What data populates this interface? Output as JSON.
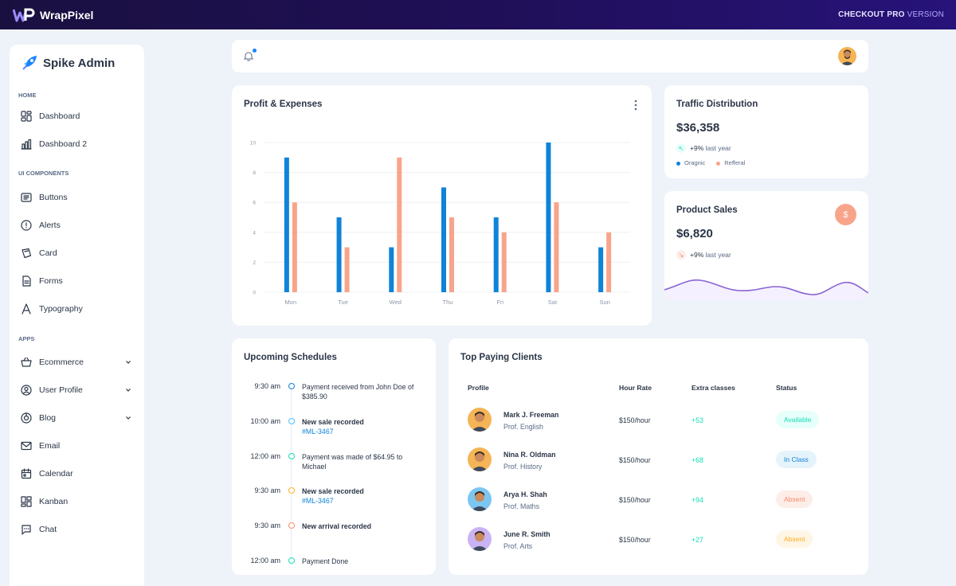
{
  "topbar": {
    "brand": "WrapPixel",
    "checkout_main": "CHECKOUT PRO",
    "checkout_suffix": " VERSION"
  },
  "sidebar": {
    "title": "Spike Admin",
    "sections": [
      {
        "label": "HOME",
        "items": [
          {
            "label": "Dashboard",
            "icon": "dashboard-icon"
          },
          {
            "label": "Dashboard 2",
            "icon": "bar-chart-icon"
          }
        ]
      },
      {
        "label": "UI COMPONENTS",
        "items": [
          {
            "label": "Buttons",
            "icon": "buttons-icon"
          },
          {
            "label": "Alerts",
            "icon": "alert-icon"
          },
          {
            "label": "Card",
            "icon": "card-icon"
          },
          {
            "label": "Forms",
            "icon": "form-icon"
          },
          {
            "label": "Typography",
            "icon": "typography-icon"
          }
        ]
      },
      {
        "label": "APPS",
        "items": [
          {
            "label": "Ecommerce",
            "icon": "basket-icon",
            "expandable": true
          },
          {
            "label": "User Profile",
            "icon": "user-icon",
            "expandable": true
          },
          {
            "label": "Blog",
            "icon": "blog-icon",
            "expandable": true
          },
          {
            "label": "Email",
            "icon": "mail-icon"
          },
          {
            "label": "Calendar",
            "icon": "calendar-icon"
          },
          {
            "label": "Kanban",
            "icon": "kanban-icon"
          },
          {
            "label": "Chat",
            "icon": "chat-icon"
          }
        ]
      }
    ]
  },
  "header": {
    "notification_icon": "bell-icon"
  },
  "profit_card": {
    "title": "Profit & Expenses",
    "chart_data": {
      "type": "bar",
      "categories": [
        "Mon",
        "Tue",
        "Wed",
        "Thu",
        "Fri",
        "Sat",
        "Sun"
      ],
      "series": [
        {
          "values": [
            9,
            5,
            3,
            7,
            5,
            10,
            3
          ],
          "color": "#0f83d8"
        },
        {
          "values": [
            6,
            3,
            9,
            5,
            4,
            6,
            4
          ],
          "color": "#f8a48b"
        }
      ],
      "ylim": [
        0,
        10
      ],
      "yticks": [
        "0",
        "2",
        "4",
        "6",
        "8",
        "10"
      ],
      "grid": true
    }
  },
  "traffic_card": {
    "title": "Traffic Distribution",
    "amount": "$36,358",
    "trend": "+9%",
    "trend_suffix": " last year",
    "legend": [
      {
        "label": "Oragnic",
        "color": "#0f83d8"
      },
      {
        "label": "Refferal",
        "color": "#f8a48b"
      }
    ]
  },
  "sales_card": {
    "title": "Product Sales",
    "amount": "$6,820",
    "trend": "+9%",
    "trend_suffix": " last year",
    "badge_symbol": "$"
  },
  "schedules_card": {
    "title": "Upcoming Schedules",
    "items": [
      {
        "time": "9:30 am",
        "text": "Payment received from John Doe of $385.90",
        "bold": false,
        "link": "",
        "color": "#0f83d8"
      },
      {
        "time": "10:00 am",
        "text": "New sale recorded",
        "bold": true,
        "link": "#ML-3467",
        "color": "#49beff"
      },
      {
        "time": "12:00 am",
        "text": "Payment was made of $64.95 to Michael",
        "bold": false,
        "link": "",
        "color": "#13deb9"
      },
      {
        "time": "9:30 am",
        "text": "New sale recorded",
        "bold": true,
        "link": "#ML-3467",
        "color": "#ffae1f"
      },
      {
        "time": "9:30 am",
        "text": "New arrival recorded",
        "bold": true,
        "link": "",
        "color": "#fa896b"
      },
      {
        "time": "12:00 am",
        "text": "Payment Done",
        "bold": false,
        "link": "",
        "color": "#13deb9"
      }
    ]
  },
  "clients_card": {
    "title": "Top Paying Clients",
    "headers": {
      "profile": "Profile",
      "rate": "Hour Rate",
      "extra": "Extra classes",
      "status": "Status"
    },
    "rows": [
      {
        "name": "Mark J. Freeman",
        "subject": "Prof. English",
        "rate": "$150/hour",
        "extra": "+53",
        "status": "Available",
        "status_color": "#13deb9",
        "status_bg": "#e6fffa",
        "avatar_bg": "#f5b455"
      },
      {
        "name": "Nina R. Oldman",
        "subject": "Prof. History",
        "rate": "$150/hour",
        "extra": "+68",
        "status": "In Class",
        "status_color": "#0f83d8",
        "status_bg": "#e5f3fb",
        "avatar_bg": "#f5b455"
      },
      {
        "name": "Arya H. Shah",
        "subject": "Prof. Maths",
        "rate": "$150/hour",
        "extra": "+94",
        "status": "Absent",
        "status_color": "#fa896b",
        "status_bg": "#fdede8",
        "avatar_bg": "#7cc6f2"
      },
      {
        "name": "June R. Smith",
        "subject": "Prof. Arts",
        "rate": "$150/hour",
        "extra": "+27",
        "status": "Absent",
        "status_color": "#ffae1f",
        "status_bg": "#fef5e5",
        "avatar_bg": "#c9b3f5"
      }
    ]
  }
}
